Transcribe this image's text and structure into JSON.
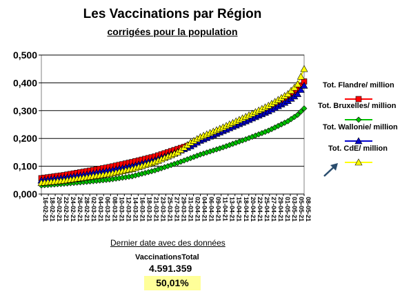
{
  "chart_data": {
    "type": "line",
    "title": "Les Vaccinations par Région",
    "subtitle": "corrigées pour la population",
    "xlabel": "",
    "ylabel": "",
    "ylim": [
      0,
      0.5
    ],
    "y_ticks": [
      "0,000",
      "0,100",
      "0,200",
      "0,300",
      "0,400",
      "0,500"
    ],
    "grid": "horizontal",
    "legend_position": "right",
    "x_start": "16-02-21",
    "x_end": "08-05-21",
    "x_tick_labels": [
      "16-02-21",
      "18-02-21",
      "20-02-21",
      "22-02-21",
      "24-02-21",
      "26-02-21",
      "28-02-21",
      "02-03-21",
      "04-03-21",
      "06-03-21",
      "08-03-21",
      "10-03-21",
      "12-03-21",
      "14-03-21",
      "16-03-21",
      "18-03-21",
      "21-03-21",
      "23-03-21",
      "25-03-21",
      "27-03-21",
      "29-03-21",
      "31-03-21",
      "02-04-21",
      "04-04-21",
      "06-04-21",
      "09-04-21",
      "11-04-21",
      "13-04-21",
      "15-04-21",
      "18-04-21",
      "20-04-21",
      "22-04-21",
      "25-04-21",
      "27-04-21",
      "29-04-21",
      "01-05-21",
      "03-05-21",
      "05-05-21",
      "08-05-21"
    ],
    "series": [
      {
        "name": "Tot. Flandre/ million",
        "color": "#ff0000",
        "marker": "square",
        "points": [
          [
            "16-02-21",
            0.057
          ],
          [
            "23-02-21",
            0.068
          ],
          [
            "02-03-21",
            0.082
          ],
          [
            "09-03-21",
            0.097
          ],
          [
            "16-03-21",
            0.115
          ],
          [
            "23-03-21",
            0.135
          ],
          [
            "30-03-21",
            0.162
          ],
          [
            "03-04-21",
            0.177
          ],
          [
            "06-04-21",
            0.197
          ],
          [
            "13-04-21",
            0.232
          ],
          [
            "20-04-21",
            0.268
          ],
          [
            "27-04-21",
            0.305
          ],
          [
            "03-05-21",
            0.345
          ],
          [
            "06-05-21",
            0.375
          ],
          [
            "08-05-21",
            0.405
          ]
        ]
      },
      {
        "name": "Tot. Bruxelles/ million",
        "color": "#00c000",
        "marker": "diamond",
        "points": [
          [
            "16-02-21",
            0.031
          ],
          [
            "23-02-21",
            0.037
          ],
          [
            "02-03-21",
            0.044
          ],
          [
            "09-03-21",
            0.052
          ],
          [
            "16-03-21",
            0.064
          ],
          [
            "23-03-21",
            0.085
          ],
          [
            "30-03-21",
            0.112
          ],
          [
            "06-04-21",
            0.142
          ],
          [
            "13-04-21",
            0.168
          ],
          [
            "20-04-21",
            0.197
          ],
          [
            "27-04-21",
            0.228
          ],
          [
            "03-05-21",
            0.262
          ],
          [
            "06-05-21",
            0.285
          ],
          [
            "08-05-21",
            0.308
          ]
        ]
      },
      {
        "name": "Tot. Wallonie/ million",
        "color": "#0000cc",
        "marker": "triangle",
        "points": [
          [
            "16-02-21",
            0.049
          ],
          [
            "23-02-21",
            0.058
          ],
          [
            "02-03-21",
            0.07
          ],
          [
            "09-03-21",
            0.084
          ],
          [
            "16-03-21",
            0.1
          ],
          [
            "23-03-21",
            0.122
          ],
          [
            "30-03-21",
            0.152
          ],
          [
            "03-04-21",
            0.172
          ],
          [
            "06-04-21",
            0.192
          ],
          [
            "13-04-21",
            0.227
          ],
          [
            "20-04-21",
            0.262
          ],
          [
            "27-04-21",
            0.298
          ],
          [
            "03-05-21",
            0.335
          ],
          [
            "06-05-21",
            0.36
          ],
          [
            "08-05-21",
            0.39
          ]
        ]
      },
      {
        "name": "Tot. CdE/ million",
        "color": "#ffff00",
        "marker": "triangle",
        "points": [
          [
            "16-02-21",
            0.04
          ],
          [
            "23-02-21",
            0.048
          ],
          [
            "02-03-21",
            0.06
          ],
          [
            "09-03-21",
            0.072
          ],
          [
            "16-03-21",
            0.09
          ],
          [
            "23-03-21",
            0.115
          ],
          [
            "30-03-21",
            0.15
          ],
          [
            "03-04-21",
            0.185
          ],
          [
            "06-04-21",
            0.205
          ],
          [
            "13-04-21",
            0.24
          ],
          [
            "20-04-21",
            0.278
          ],
          [
            "27-04-21",
            0.318
          ],
          [
            "03-05-21",
            0.36
          ],
          [
            "06-05-21",
            0.395
          ],
          [
            "08-05-21",
            0.45
          ]
        ]
      }
    ]
  },
  "footer": {
    "link_text": "Dernier date avec des données",
    "vaccinations_label": "VaccinationsTotal",
    "vaccinations_value": "4.591.359",
    "percentage": "50,01%"
  }
}
